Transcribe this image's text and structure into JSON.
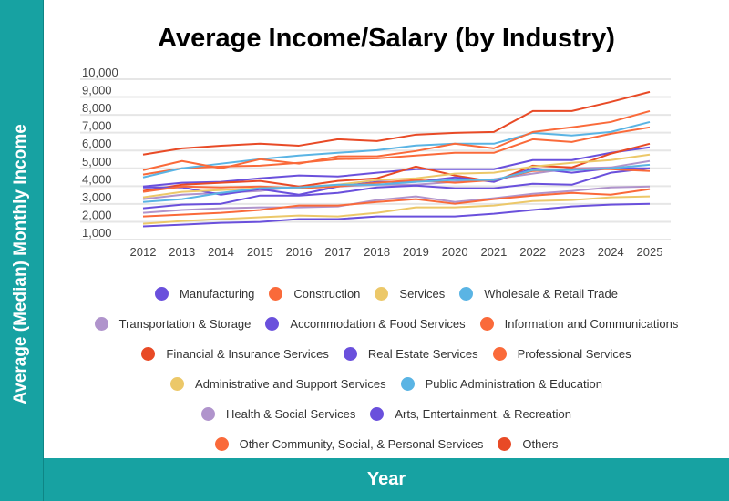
{
  "title": "Average Income/Salary (by Industry)",
  "chart_data": {
    "type": "line",
    "title": "Average Income/Salary (by Industry)",
    "xlabel": "Year",
    "ylabel": "Average (Median) Monthly Income",
    "ylim": [
      1000,
      10000
    ],
    "yticks": [
      "1,000",
      "2,000",
      "3,000",
      "4,000",
      "5,000",
      "6,000",
      "7,000",
      "8,000",
      "9,000",
      "10,000"
    ],
    "grid": true,
    "legend_position": "bottom",
    "x": [
      "2012",
      "2013",
      "2014",
      "2015",
      "2016",
      "2017",
      "2018",
      "2019",
      "2020",
      "2021",
      "2022",
      "2023",
      "2024",
      "2025"
    ],
    "series": [
      {
        "name": "Manufacturing",
        "color": "#6a50dc",
        "values": [
          3980,
          4190,
          4240,
          4440,
          4600,
          4540,
          4750,
          4950,
          4950,
          4950,
          5460,
          5460,
          5870,
          6180
        ]
      },
      {
        "name": "Construction",
        "color": "#fa6a3a",
        "values": [
          4650,
          5000,
          5100,
          5150,
          5310,
          5510,
          5560,
          5720,
          5870,
          5870,
          6630,
          6480,
          6940,
          7300
        ]
      },
      {
        "name": "Services",
        "color": "#ecc869",
        "values": [
          1890,
          2040,
          2150,
          2250,
          2350,
          2300,
          2500,
          2810,
          2810,
          2910,
          3160,
          3220,
          3370,
          3420
        ]
      },
      {
        "name": "Wholesale & Retail Trade",
        "color": "#5ab4e4",
        "values": [
          4490,
          5000,
          5260,
          5510,
          5720,
          5870,
          6020,
          6280,
          6380,
          6380,
          6990,
          6840,
          7040,
          7600
        ]
      },
      {
        "name": "Transportation & Storage",
        "color": "#b094cc",
        "values": [
          3270,
          3520,
          3620,
          3730,
          3980,
          3980,
          4080,
          4080,
          4240,
          4390,
          4700,
          5000,
          5050,
          5410
        ]
      },
      {
        "name": "Accommodation & Food Services",
        "color": "#6a50dc",
        "values": [
          2760,
          2960,
          3010,
          3470,
          3470,
          3620,
          3930,
          4030,
          3880,
          3880,
          4130,
          4080,
          4750,
          5000
        ]
      },
      {
        "name": "Information and Communications",
        "color": "#fa6a3a",
        "values": [
          4900,
          5410,
          5000,
          5510,
          5260,
          5670,
          5670,
          5970,
          6380,
          6120,
          7040,
          7300,
          7600,
          8215
        ]
      },
      {
        "name": "Financial & Insurance Services",
        "color": "#e84a26",
        "values": [
          3730,
          4080,
          4190,
          4290,
          3980,
          4290,
          4440,
          5100,
          4600,
          4240,
          5150,
          5050,
          5820,
          6380
        ]
      },
      {
        "name": "Real Estate Services",
        "color": "#6a50dc",
        "values": [
          3930,
          3930,
          3520,
          3830,
          3520,
          3980,
          4240,
          4240,
          4490,
          4240,
          5000,
          4750,
          5000,
          5000
        ]
      },
      {
        "name": "Professional Services",
        "color": "#fa6a3a",
        "values": [
          3680,
          3980,
          3930,
          3980,
          3880,
          3980,
          4190,
          4340,
          4190,
          4340,
          4850,
          4950,
          4950,
          4850
        ]
      },
      {
        "name": "Administrative and Support Services",
        "color": "#ecc869",
        "values": [
          3370,
          3680,
          3780,
          3880,
          3930,
          4080,
          4340,
          4440,
          4700,
          4750,
          5100,
          5310,
          5460,
          5770
        ]
      },
      {
        "name": "Public Administration & Education",
        "color": "#5ab4e4",
        "values": [
          3110,
          3270,
          3620,
          3880,
          3930,
          4080,
          4080,
          4240,
          4340,
          4340,
          4900,
          4900,
          5000,
          5200
        ]
      },
      {
        "name": "Health & Social Services",
        "color": "#b094cc",
        "values": [
          2500,
          2660,
          2760,
          2810,
          2810,
          2860,
          3220,
          3420,
          3110,
          3320,
          3570,
          3730,
          3930,
          3980
        ]
      },
      {
        "name": "Arts, Entertainment, & Recreation",
        "color": "#6a50dc",
        "values": [
          1740,
          1840,
          1940,
          1990,
          2150,
          2150,
          2300,
          2300,
          2300,
          2450,
          2660,
          2860,
          2960,
          3010
        ]
      },
      {
        "name": "Other Community, Social, & Personal Services",
        "color": "#fa6a3a",
        "values": [
          2300,
          2400,
          2500,
          2660,
          2910,
          2910,
          3110,
          3270,
          3010,
          3270,
          3470,
          3620,
          3520,
          3830
        ]
      },
      {
        "name": "Others",
        "color": "#e84a26",
        "values": [
          5770,
          6120,
          6270,
          6380,
          6270,
          6630,
          6530,
          6890,
          6990,
          7040,
          8215,
          8215,
          8725,
          9290
        ]
      }
    ],
    "legend_rows": [
      [
        0,
        1,
        2,
        3
      ],
      [
        4,
        5,
        6
      ],
      [
        7,
        8,
        9
      ],
      [
        10,
        11
      ],
      [
        12,
        13
      ],
      [
        14,
        15
      ]
    ]
  },
  "colors": {
    "accent": "#17a2a2"
  }
}
